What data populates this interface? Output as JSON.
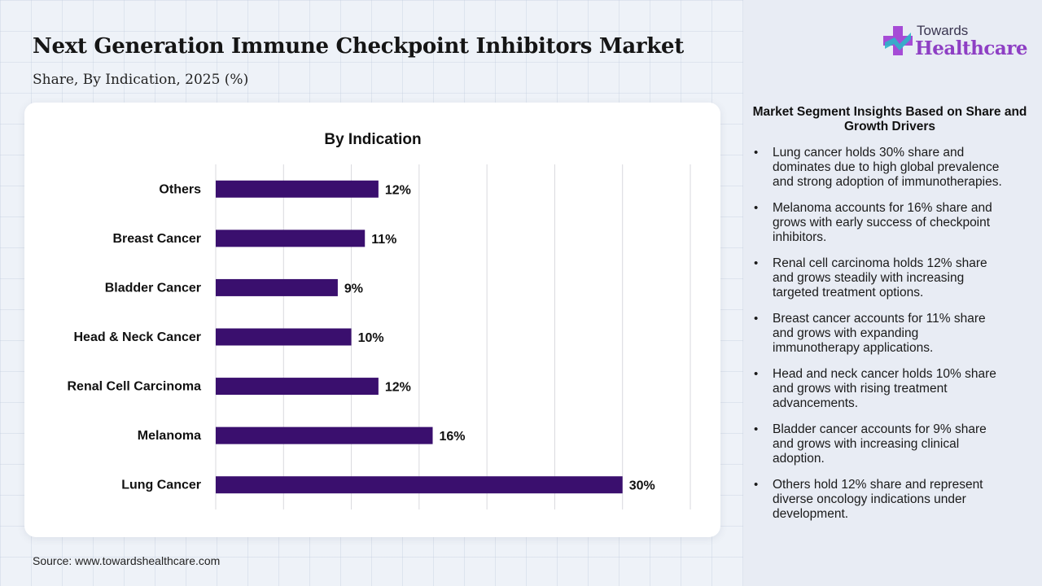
{
  "header": {
    "title": "Next Generation Immune Checkpoint Inhibitors Market",
    "subtitle": "Share, By Indication, 2025 (%)"
  },
  "logo": {
    "line1": "Towards",
    "line2": "Healthcare"
  },
  "colors": {
    "bar": "#3a0f6e",
    "accent": "#8e3fc4",
    "panel": "#e8ecf4"
  },
  "chart_data": {
    "type": "bar",
    "orientation": "horizontal",
    "title": "By Indication",
    "categories": [
      "Others",
      "Breast Cancer",
      "Bladder Cancer",
      "Head & Neck Cancer",
      "Renal Cell Carcinoma",
      "Melanoma",
      "Lung Cancer"
    ],
    "values": [
      12,
      11,
      9,
      10,
      12,
      16,
      30
    ],
    "value_labels": [
      "12%",
      "11%",
      "9%",
      "10%",
      "12%",
      "16%",
      "30%"
    ],
    "xlim": [
      0,
      35
    ],
    "grid": "vertical",
    "legend": "none"
  },
  "source": "Source: www.towardshealthcare.com",
  "insights": {
    "heading": "Market Segment Insights Based on Share and Growth Drivers",
    "items": [
      "Lung cancer holds 30% share and dominates due to high global prevalence and strong adoption of immunotherapies.",
      "Melanoma accounts for 16% share and grows with early success of checkpoint inhibitors.",
      "Renal cell carcinoma holds 12% share and grows steadily with increasing targeted treatment options.",
      "Breast cancer accounts for 11% share and grows with expanding immunotherapy applications.",
      "Head and neck cancer holds 10% share and grows with rising treatment advancements.",
      "Bladder cancer accounts for 9% share and grows with increasing clinical adoption.",
      "Others hold 12% share and represent diverse oncology indications under development."
    ]
  }
}
